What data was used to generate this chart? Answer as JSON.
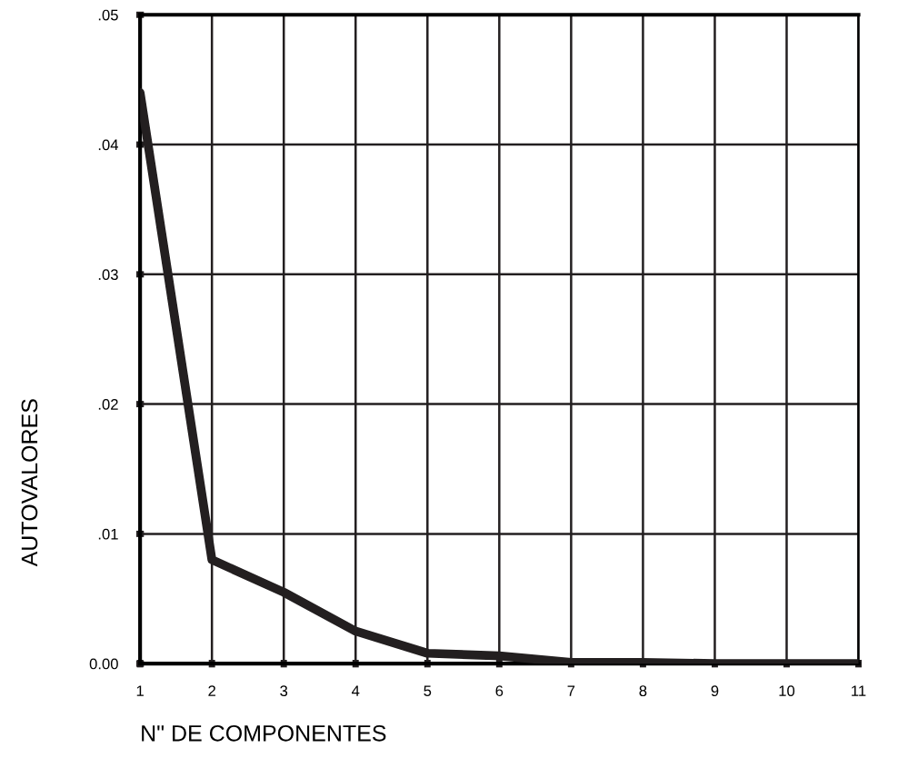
{
  "chart_data": {
    "type": "line",
    "xlabel": "N\" DE COMPONENTES",
    "ylabel": "AUTOVALORES",
    "x": [
      1,
      2,
      3,
      4,
      5,
      6,
      7,
      8,
      9,
      10,
      11
    ],
    "series": [
      {
        "color": "#231f20",
        "values": [
          0.044,
          0.008,
          0.0055,
          0.0025,
          0.0008,
          0.0006,
          0.0001,
          0.0001,
          0.0,
          0.0,
          0.0
        ]
      }
    ],
    "xlim": [
      1,
      11
    ],
    "xticks": [
      1,
      2,
      3,
      4,
      5,
      6,
      7,
      8,
      9,
      10,
      11
    ],
    "ylim": [
      0,
      0.05
    ],
    "yticks": [
      {
        "value": 0,
        "label": "0.00"
      },
      {
        "value": 0.01,
        "label": ".01"
      },
      {
        "value": 0.02,
        "label": ".02"
      },
      {
        "value": 0.03,
        "label": ".03"
      },
      {
        "value": 0.04,
        "label": ".04"
      },
      {
        "value": 0.05,
        "label": ".05"
      }
    ],
    "grid": true,
    "line_style": "solid",
    "marker": "none"
  }
}
